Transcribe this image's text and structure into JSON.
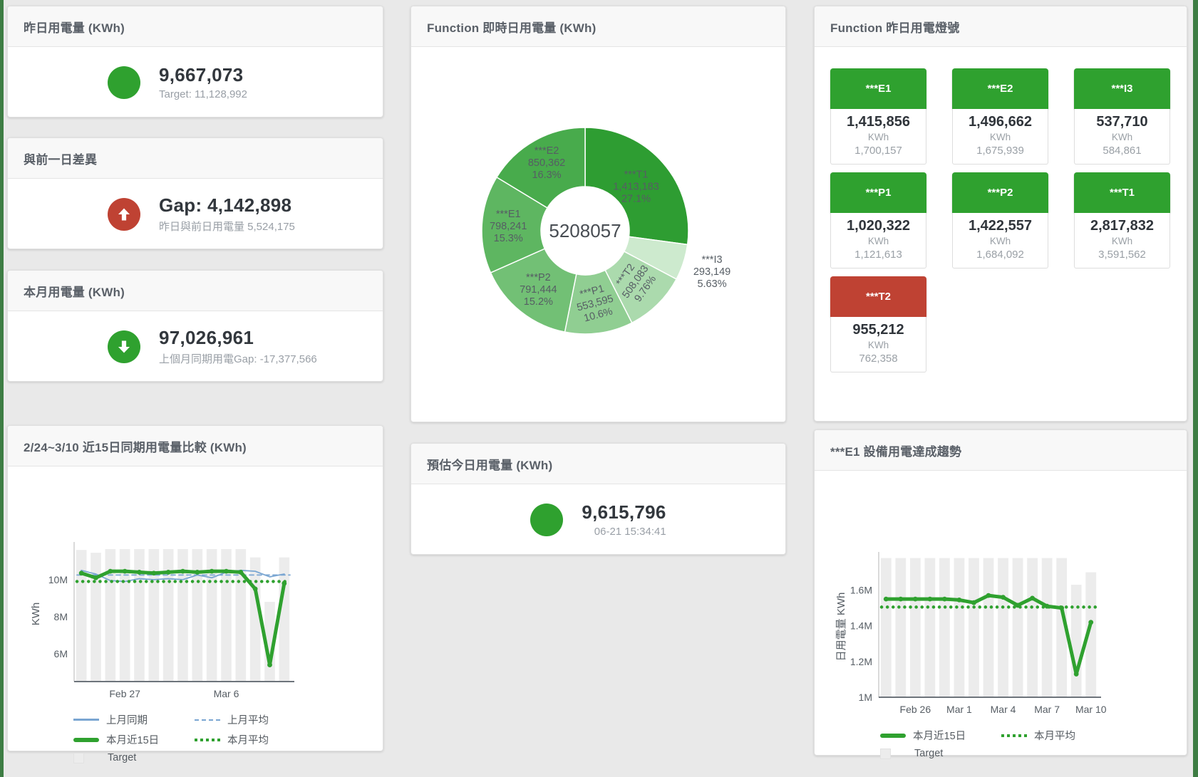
{
  "colors": {
    "green": "#2fa12f",
    "red": "#bf4233",
    "blue": "#7aa6d2",
    "bar": "#ececec"
  },
  "panels": {
    "yesterday": {
      "title": "昨日用電量 (KWh)",
      "value": "9,667,073",
      "subtitle": "Target: 11,128,992"
    },
    "day_gap": {
      "title": "與前一日差異",
      "value": "Gap: 4,142,898",
      "subtitle": "昨日與前日用電量 5,524,175"
    },
    "month": {
      "title": "本月用電量 (KWh)",
      "value": "97,026,961",
      "subtitle": "上個月同期用電Gap: -17,377,566"
    },
    "estimate": {
      "title": "預估今日用電量 (KWh)",
      "value": "9,615,796",
      "subtitle": "06-21 15:34:41"
    },
    "donut": {
      "title": "Function 即時日用電量 (KWh)"
    },
    "lamps": {
      "title": "Function 昨日用電燈號"
    },
    "compare": {
      "title": "2/24~3/10 近15日同期用電量比較 (KWh)"
    },
    "e1trend": {
      "title": "***E1 設備用電達成趨勢"
    }
  },
  "lamps": [
    {
      "name": "***E1",
      "value": "1,415,856",
      "unit": "KWh",
      "target": "1,700,157",
      "status": "green"
    },
    {
      "name": "***E2",
      "value": "1,496,662",
      "unit": "KWh",
      "target": "1,675,939",
      "status": "green"
    },
    {
      "name": "***I3",
      "value": "537,710",
      "unit": "KWh",
      "target": "584,861",
      "status": "green"
    },
    {
      "name": "***P1",
      "value": "1,020,322",
      "unit": "KWh",
      "target": "1,121,613",
      "status": "green"
    },
    {
      "name": "***P2",
      "value": "1,422,557",
      "unit": "KWh",
      "target": "1,684,092",
      "status": "green"
    },
    {
      "name": "***T1",
      "value": "2,817,832",
      "unit": "KWh",
      "target": "3,591,562",
      "status": "green"
    },
    {
      "name": "***T2",
      "value": "955,212",
      "unit": "KWh",
      "target": "762,358",
      "status": "red"
    }
  ],
  "chart_data": [
    {
      "type": "pie",
      "title": "Function 即時日用電量 (KWh)",
      "center_label": "5208057",
      "total": 5208057,
      "slices": [
        {
          "name": "***T1",
          "value": 1413183,
          "value_label": "1,413,183",
          "pct": "27.1%",
          "color": "#2e9d32",
          "label_color": "#ffffff",
          "label_r": 95,
          "rotate": 0
        },
        {
          "name": "***I3",
          "value": 293149,
          "value_label": "293,149",
          "pct": "5.63%",
          "color": "#cdeace",
          "label_color": "#555f66",
          "label_r": 187,
          "rotate": 0
        },
        {
          "name": "***T2",
          "value": 508083,
          "value_label": "508,083",
          "pct": "9.76%",
          "color": "#abdaad",
          "label_color": "#4e585e",
          "label_r": 100,
          "rotate": -55
        },
        {
          "name": "***P1",
          "value": 553595,
          "value_label": "553,595",
          "pct": "10.6%",
          "color": "#90ce92",
          "label_color": "#4e585e",
          "label_r": 102,
          "rotate": -15
        },
        {
          "name": "***P2",
          "value": 791444,
          "value_label": "791,444",
          "pct": "15.2%",
          "color": "#72c075",
          "label_color": "#4e585e",
          "label_r": 105,
          "rotate": 0
        },
        {
          "name": "***E1",
          "value": 798241,
          "value_label": "798,241",
          "pct": "15.3%",
          "color": "#5eb661",
          "label_color": "#4e585e",
          "label_r": 108,
          "rotate": 0
        },
        {
          "name": "***E2",
          "value": 850362,
          "value_label": "850,362",
          "pct": "16.3%",
          "color": "#48ab4c",
          "label_color": "#f2f7f2",
          "label_r": 110,
          "rotate": 0
        }
      ]
    },
    {
      "type": "line+bar",
      "title": "2/24~3/10 近15日同期用電量比較 (KWh)",
      "ylabel": "KWh",
      "ylim": [
        4500000,
        11800000
      ],
      "yticks": [
        {
          "v": 6000000,
          "label": "6M"
        },
        {
          "v": 8000000,
          "label": "8M"
        },
        {
          "v": 10000000,
          "label": "10M"
        }
      ],
      "xticks": [
        {
          "i": 3,
          "label": "Feb 27"
        },
        {
          "i": 10,
          "label": "Mar 6"
        }
      ],
      "target_bars": [
        11600000,
        11450000,
        11650000,
        11650000,
        11650000,
        11650000,
        11650000,
        11650000,
        11650000,
        11650000,
        11650000,
        11650000,
        11200000,
        8800000,
        11200000
      ],
      "series": [
        {
          "name": "上月同期",
          "style": "line",
          "color": "#7aa6d2",
          "values": [
            10500000,
            10300000,
            9950000,
            9900000,
            10050000,
            10000000,
            10050000,
            10000000,
            10250000,
            10100000,
            10400000,
            10500000,
            10450000,
            10150000,
            10300000
          ]
        },
        {
          "name": "上月平均",
          "style": "dashed",
          "color": "#7aa6d2",
          "const": 10250000
        },
        {
          "name": "本月近15日",
          "style": "line-thick",
          "color": "#2fa12f",
          "values": [
            10350000,
            10100000,
            10450000,
            10450000,
            10400000,
            10350000,
            10400000,
            10450000,
            10400000,
            10450000,
            10450000,
            10400000,
            9500000,
            5400000,
            9800000
          ]
        },
        {
          "name": "本月平均",
          "style": "dotted",
          "color": "#2fa12f",
          "const": 9900000
        }
      ],
      "legend": [
        [
          {
            "type": "line",
            "color": "#7aa6d2",
            "label": "上月同期"
          },
          {
            "type": "dashed",
            "color": "#7aa6d2",
            "label": "上月平均"
          }
        ],
        [
          {
            "type": "line-thick",
            "color": "#2fa12f",
            "label": "本月近15日"
          },
          {
            "type": "dotted",
            "color": "#2fa12f",
            "label": "本月平均"
          }
        ],
        [
          {
            "type": "square",
            "color": "#ececec",
            "label": "Target"
          }
        ]
      ]
    },
    {
      "type": "line+bar",
      "title": "***E1 設備用電達成趨勢",
      "ylabel": "日用電量 KWh",
      "ylim": [
        1000000,
        1790000
      ],
      "yticks": [
        {
          "v": 1000000,
          "label": "1M"
        },
        {
          "v": 1200000,
          "label": "1.2M"
        },
        {
          "v": 1400000,
          "label": "1.4M"
        },
        {
          "v": 1600000,
          "label": "1.6M"
        }
      ],
      "xticks": [
        {
          "i": 2,
          "label": "Feb 26"
        },
        {
          "i": 5,
          "label": "Mar 1"
        },
        {
          "i": 8,
          "label": "Mar 4"
        },
        {
          "i": 11,
          "label": "Mar 7"
        },
        {
          "i": 14,
          "label": "Mar 10"
        }
      ],
      "target_bars": [
        1780000,
        1780000,
        1780000,
        1780000,
        1780000,
        1780000,
        1780000,
        1780000,
        1780000,
        1780000,
        1780000,
        1780000,
        1780000,
        1630000,
        1700000
      ],
      "series": [
        {
          "name": "本月近15日",
          "style": "line-thick",
          "color": "#2fa12f",
          "values": [
            1550000,
            1550000,
            1550000,
            1550000,
            1550000,
            1545000,
            1530000,
            1570000,
            1560000,
            1515000,
            1555000,
            1510000,
            1500000,
            1130000,
            1420000
          ]
        },
        {
          "name": "本月平均",
          "style": "dotted",
          "color": "#2fa12f",
          "const": 1505000
        }
      ],
      "legend": [
        [
          {
            "type": "line-thick",
            "color": "#2fa12f",
            "label": "本月近15日"
          },
          {
            "type": "dotted",
            "color": "#2fa12f",
            "label": "本月平均"
          }
        ],
        [
          {
            "type": "square",
            "color": "#ececec",
            "label": "Target"
          }
        ]
      ]
    }
  ]
}
